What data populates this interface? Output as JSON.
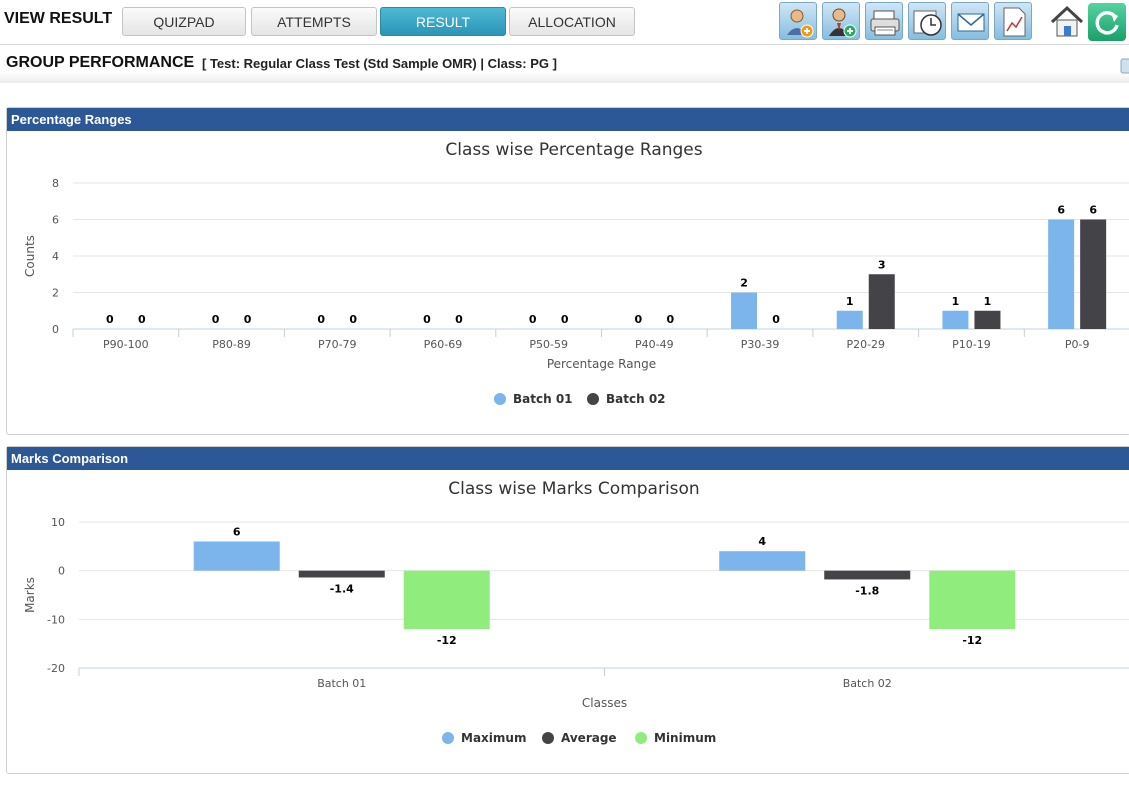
{
  "header": {
    "title": "VIEW RESULT",
    "tabs": [
      {
        "label": "QUIZPAD",
        "active": false
      },
      {
        "label": "ATTEMPTS",
        "active": false
      },
      {
        "label": "RESULT",
        "active": true
      },
      {
        "label": "ALLOCATION",
        "active": false
      }
    ],
    "tools": [
      "add-user-icon",
      "add-teacher-icon",
      "printer-icon",
      "clock-icon",
      "mail-icon",
      "report-icon",
      "home-icon",
      "refresh-icon"
    ]
  },
  "subheader": {
    "title": "GROUP PERFORMANCE",
    "subtitle": "[ Test: Regular Class Test (Std Sample OMR) | Class: PG ]"
  },
  "panels": {
    "percentage": {
      "header": "Percentage Ranges"
    },
    "marks": {
      "header": "Marks Comparison"
    }
  },
  "colors": {
    "accent": "#2d5898",
    "series1": "#7cb5ec",
    "series2": "#434348",
    "series3": "#90ed7d",
    "tab_active": "#2a95b8"
  },
  "chart_data": [
    {
      "type": "bar",
      "title": "Class wise Percentage Ranges",
      "xlabel": "Percentage Range",
      "ylabel": "Counts",
      "ylim": [
        0,
        8
      ],
      "yticks": [
        0,
        2,
        4,
        6,
        8
      ],
      "categories": [
        "P90-100",
        "P80-89",
        "P70-79",
        "P60-69",
        "P50-59",
        "P40-49",
        "P30-39",
        "P20-29",
        "P10-19",
        "P0-9"
      ],
      "series": [
        {
          "name": "Batch 01",
          "values": [
            0,
            0,
            0,
            0,
            0,
            0,
            2,
            1,
            1,
            6
          ]
        },
        {
          "name": "Batch 02",
          "values": [
            0,
            0,
            0,
            0,
            0,
            0,
            0,
            3,
            1,
            6
          ]
        }
      ],
      "grid": true,
      "legend": "bottom-center"
    },
    {
      "type": "bar",
      "title": "Class wise Marks Comparison",
      "xlabel": "Classes",
      "ylabel": "Marks",
      "ylim": [
        -20,
        10
      ],
      "yticks": [
        -20,
        -10,
        0,
        10
      ],
      "categories": [
        "Batch 01",
        "Batch 02"
      ],
      "series": [
        {
          "name": "Maximum",
          "values": [
            6,
            4
          ]
        },
        {
          "name": "Average",
          "values": [
            -1.4,
            -1.8
          ]
        },
        {
          "name": "Minimum",
          "values": [
            -12,
            -12
          ]
        }
      ],
      "grid": true,
      "legend": "bottom-center"
    }
  ]
}
